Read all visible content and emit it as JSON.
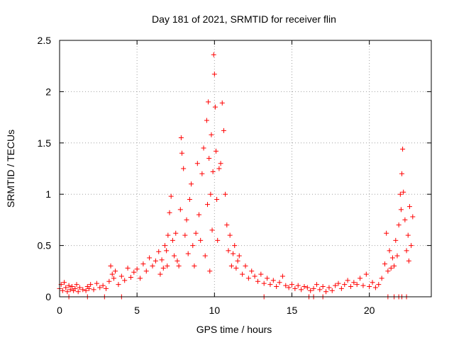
{
  "chart_data": {
    "type": "scatter",
    "title": "Day 181 of 2021, SRMTID for receiver flin",
    "xlabel": "GPS time / hours",
    "ylabel": "SRMTID / TECUs",
    "xlim": [
      0,
      24
    ],
    "ylim": [
      0,
      2.5
    ],
    "x_ticks": [
      0,
      5,
      10,
      15,
      20
    ],
    "x_tick_labels": [
      "0",
      "5",
      "10",
      "15",
      "20"
    ],
    "y_ticks": [
      0,
      0.5,
      1,
      1.5,
      2,
      2.5
    ],
    "y_tick_labels": [
      "0",
      "0.5",
      "1",
      "1.5",
      "2",
      "2.5"
    ],
    "grid": true,
    "marker": "plus",
    "color": "#ff0000",
    "series": [
      {
        "name": "SRMTID",
        "x": [
          0.0,
          0.1,
          0.2,
          0.3,
          0.4,
          0.5,
          0.6,
          0.7,
          0.8,
          0.9,
          1.0,
          1.1,
          1.2,
          1.3,
          1.5,
          1.7,
          1.8,
          1.9,
          2.0,
          2.2,
          2.4,
          2.6,
          2.8,
          3.0,
          3.2,
          3.3,
          3.4,
          3.5,
          3.6,
          3.8,
          4.0,
          4.2,
          4.4,
          4.6,
          4.8,
          5.0,
          5.2,
          5.4,
          5.6,
          5.8,
          6.0,
          6.2,
          6.4,
          6.5,
          6.6,
          6.7,
          6.8,
          6.9,
          6.95,
          7.0,
          7.1,
          7.2,
          7.3,
          7.4,
          7.5,
          7.6,
          7.7,
          7.8,
          7.85,
          7.9,
          8.0,
          8.1,
          8.2,
          8.3,
          8.4,
          8.5,
          8.6,
          8.7,
          8.8,
          8.9,
          9.0,
          9.1,
          9.2,
          9.3,
          9.4,
          9.5,
          9.55,
          9.6,
          9.65,
          9.7,
          9.75,
          9.8,
          9.85,
          9.9,
          9.95,
          10.0,
          10.05,
          10.1,
          10.15,
          10.2,
          10.3,
          10.4,
          10.5,
          10.6,
          10.7,
          10.8,
          10.9,
          11.0,
          11.1,
          11.2,
          11.3,
          11.4,
          11.5,
          11.6,
          11.8,
          12.0,
          12.2,
          12.4,
          12.6,
          12.8,
          13.0,
          13.2,
          13.4,
          13.6,
          13.8,
          14.0,
          14.2,
          14.4,
          14.6,
          14.8,
          15.0,
          15.2,
          15.4,
          15.6,
          15.8,
          16.0,
          16.2,
          16.4,
          16.6,
          16.8,
          17.0,
          17.2,
          17.4,
          17.6,
          17.8,
          18.0,
          18.2,
          18.4,
          18.6,
          18.8,
          19.0,
          19.2,
          19.4,
          19.6,
          19.8,
          20.0,
          20.2,
          20.4,
          20.6,
          20.8,
          21.0,
          21.1,
          21.2,
          21.3,
          21.4,
          21.5,
          21.6,
          21.7,
          21.8,
          21.9,
          22.0,
          22.05,
          22.1,
          22.15,
          22.2,
          22.3,
          22.4,
          22.5,
          22.55,
          22.6,
          22.7,
          22.8,
          0.6,
          1.8,
          2.9,
          4.0,
          13.2,
          16.1,
          16.4,
          17.0,
          21.2,
          21.6,
          21.9,
          22.1,
          22.4
        ],
        "y": [
          0.08,
          0.12,
          0.06,
          0.14,
          0.09,
          0.05,
          0.11,
          0.07,
          0.1,
          0.06,
          0.08,
          0.12,
          0.05,
          0.09,
          0.07,
          0.06,
          0.1,
          0.08,
          0.12,
          0.07,
          0.13,
          0.09,
          0.11,
          0.08,
          0.15,
          0.3,
          0.22,
          0.18,
          0.25,
          0.12,
          0.2,
          0.16,
          0.28,
          0.19,
          0.24,
          0.27,
          0.18,
          0.32,
          0.25,
          0.38,
          0.3,
          0.35,
          0.44,
          0.22,
          0.36,
          0.28,
          0.5,
          0.45,
          0.3,
          0.6,
          0.82,
          0.98,
          0.55,
          0.4,
          0.62,
          0.35,
          0.3,
          0.85,
          1.55,
          1.4,
          1.25,
          0.6,
          0.75,
          0.42,
          0.95,
          1.1,
          0.5,
          0.3,
          0.62,
          1.3,
          0.8,
          0.55,
          1.2,
          1.45,
          0.4,
          1.72,
          0.9,
          1.9,
          1.35,
          0.25,
          1.0,
          1.58,
          0.65,
          1.22,
          2.36,
          2.17,
          1.85,
          1.42,
          0.95,
          0.55,
          1.25,
          1.3,
          1.89,
          1.62,
          1.0,
          0.7,
          0.45,
          0.6,
          0.3,
          0.42,
          0.5,
          0.28,
          0.35,
          0.4,
          0.22,
          0.3,
          0.18,
          0.25,
          0.2,
          0.15,
          0.22,
          0.13,
          0.18,
          0.12,
          0.16,
          0.1,
          0.14,
          0.2,
          0.11,
          0.09,
          0.12,
          0.08,
          0.11,
          0.07,
          0.1,
          0.09,
          0.06,
          0.08,
          0.12,
          0.07,
          0.1,
          0.05,
          0.09,
          0.06,
          0.11,
          0.13,
          0.08,
          0.12,
          0.16,
          0.1,
          0.14,
          0.12,
          0.18,
          0.11,
          0.22,
          0.1,
          0.14,
          0.09,
          0.12,
          0.18,
          0.32,
          0.62,
          0.25,
          0.45,
          0.28,
          0.38,
          0.3,
          0.55,
          0.4,
          0.7,
          1.0,
          0.85,
          1.2,
          1.44,
          1.02,
          0.75,
          0.45,
          0.6,
          0.35,
          0.88,
          0.5,
          0.78,
          0.0,
          0.0,
          0.0,
          0.0,
          0.0,
          0.0,
          0.0,
          0.0,
          0.0,
          0.0,
          0.0,
          0.0,
          0.0
        ]
      }
    ]
  }
}
